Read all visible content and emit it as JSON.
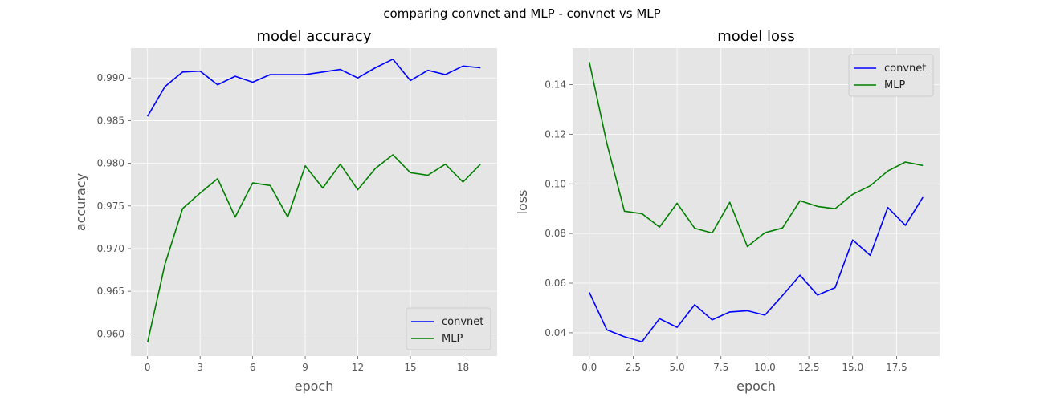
{
  "figure_title": "comparing convnet and MLP - convnet vs MLP",
  "colors": {
    "convnet": "#0000ff",
    "MLP": "#008000",
    "plot_bg": "#e5e5e5",
    "grid": "#ffffff",
    "tick_text": "#555555"
  },
  "chart_data": [
    {
      "type": "line",
      "title": "model accuracy",
      "xlabel": "epoch",
      "ylabel": "accuracy",
      "xlim": [
        -0.95,
        19.95
      ],
      "ylim": [
        0.9574,
        0.9935
      ],
      "xticks": [
        0,
        3,
        6,
        9,
        12,
        15,
        18
      ],
      "xtick_labels": [
        "0",
        "3",
        "6",
        "9",
        "12",
        "15",
        "18"
      ],
      "yticks": [
        0.96,
        0.965,
        0.97,
        0.975,
        0.98,
        0.985,
        0.99
      ],
      "ytick_labels": [
        "0.960",
        "0.965",
        "0.970",
        "0.975",
        "0.980",
        "0.985",
        "0.990"
      ],
      "grid": true,
      "legend_position": "lower-right",
      "x": [
        0,
        1,
        2,
        3,
        4,
        5,
        6,
        7,
        8,
        9,
        10,
        11,
        12,
        13,
        14,
        15,
        16,
        17,
        18,
        19
      ],
      "series": [
        {
          "name": "convnet",
          "color": "#0000ff",
          "values": [
            0.9855,
            0.989,
            0.9907,
            0.9908,
            0.9892,
            0.9902,
            0.9895,
            0.9904,
            0.9904,
            0.9904,
            0.9907,
            0.991,
            0.99,
            0.9912,
            0.9922,
            0.9897,
            0.9909,
            0.9904,
            0.9914,
            0.9912
          ]
        },
        {
          "name": "MLP",
          "color": "#008000",
          "values": [
            0.959,
            0.9682,
            0.9747,
            0.9765,
            0.9782,
            0.9737,
            0.9777,
            0.9774,
            0.9737,
            0.9797,
            0.9771,
            0.9799,
            0.9769,
            0.9794,
            0.981,
            0.9789,
            0.9786,
            0.9799,
            0.9778,
            0.9799
          ]
        }
      ]
    },
    {
      "type": "line",
      "title": "model loss",
      "xlabel": "epoch",
      "ylabel": "loss",
      "xlim": [
        -0.95,
        19.95
      ],
      "ylim": [
        0.0306,
        0.1547
      ],
      "xticks": [
        0,
        2.5,
        5,
        7.5,
        10,
        12.5,
        15,
        17.5
      ],
      "xtick_labels": [
        "0.0",
        "2.5",
        "5.0",
        "7.5",
        "10.0",
        "12.5",
        "15.0",
        "17.5"
      ],
      "yticks": [
        0.04,
        0.06,
        0.08,
        0.1,
        0.12,
        0.14
      ],
      "ytick_labels": [
        "0.04",
        "0.06",
        "0.08",
        "0.10",
        "0.12",
        "0.14"
      ],
      "grid": true,
      "legend_position": "upper-right",
      "x": [
        0,
        1,
        2,
        3,
        4,
        5,
        6,
        7,
        8,
        9,
        10,
        11,
        12,
        13,
        14,
        15,
        16,
        17,
        18,
        19
      ],
      "series": [
        {
          "name": "convnet",
          "color": "#0000ff",
          "values": [
            0.0563,
            0.0412,
            0.0384,
            0.0364,
            0.0457,
            0.0422,
            0.0513,
            0.0452,
            0.0484,
            0.0489,
            0.0471,
            0.055,
            0.0632,
            0.0552,
            0.0582,
            0.0774,
            0.0712,
            0.0905,
            0.0833,
            0.0946
          ]
        },
        {
          "name": "MLP",
          "color": "#008000",
          "values": [
            0.1491,
            0.1164,
            0.089,
            0.088,
            0.0826,
            0.0922,
            0.0821,
            0.0802,
            0.0926,
            0.0747,
            0.0803,
            0.0822,
            0.0932,
            0.0909,
            0.09,
            0.0958,
            0.0992,
            0.1052,
            0.1088,
            0.1074
          ]
        }
      ]
    }
  ]
}
